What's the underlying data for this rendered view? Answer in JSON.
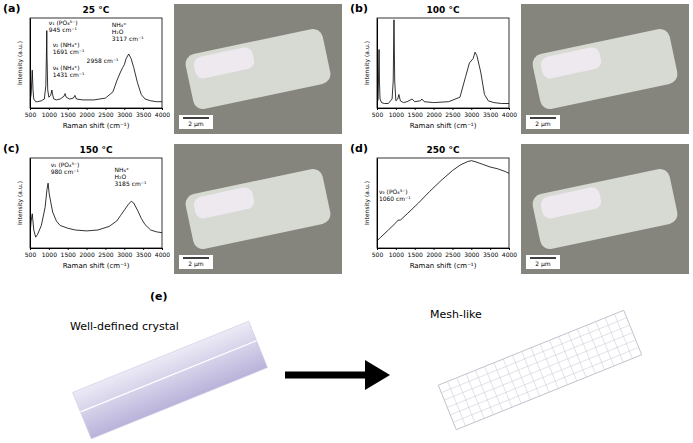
{
  "chart_data": [
    {
      "type": "line",
      "panel": "(a)",
      "title": "25 °C",
      "x_label": "Raman shift (cm⁻¹)",
      "y_label": "Intensity (a.u.)",
      "xlim": [
        500,
        4000
      ],
      "xticks": [
        500,
        1000,
        1500,
        2000,
        2500,
        3000,
        3500,
        4000
      ],
      "ylim": [
        0,
        1
      ],
      "tick_labels": "x",
      "series": [
        {
          "color": "#000000",
          "x": [
            500,
            530,
            560,
            580,
            600,
            650,
            700,
            800,
            880,
            920,
            940,
            945,
            950,
            970,
            1000,
            1050,
            1080,
            1100,
            1130,
            1200,
            1300,
            1400,
            1431,
            1460,
            1550,
            1650,
            1691,
            1730,
            1900,
            2200,
            2500,
            2700,
            2800,
            2900,
            2958,
            3000,
            3050,
            3117,
            3180,
            3250,
            3350,
            3450,
            3550,
            3700,
            3850,
            4000
          ],
          "values": [
            0.08,
            0.15,
            0.42,
            0.2,
            0.1,
            0.07,
            0.07,
            0.08,
            0.1,
            0.25,
            0.7,
            0.86,
            0.6,
            0.2,
            0.12,
            0.14,
            0.2,
            0.15,
            0.1,
            0.09,
            0.1,
            0.13,
            0.16,
            0.12,
            0.1,
            0.11,
            0.14,
            0.1,
            0.09,
            0.09,
            0.11,
            0.18,
            0.3,
            0.4,
            0.45,
            0.48,
            0.55,
            0.6,
            0.55,
            0.45,
            0.28,
            0.15,
            0.1,
            0.08,
            0.07,
            0.07
          ]
        }
      ],
      "annotations": [
        {
          "text": [
            "ν₁ (PO₄³⁻)",
            "945 cm⁻¹"
          ],
          "x": 1000,
          "y": 0.92
        },
        {
          "text": [
            "ν₂ (NH₄⁺)",
            "1691 cm⁻¹"
          ],
          "x": 1100,
          "y": 0.68
        },
        {
          "text": [
            "ν₄ (NH₄⁺)",
            "1431 cm⁻¹"
          ],
          "x": 1100,
          "y": 0.42
        },
        {
          "text": [
            "2958 cm⁻¹"
          ],
          "x": 2000,
          "y": 0.5
        },
        {
          "text": [
            "NH₄⁺",
            "H₂O",
            "3117 cm⁻¹"
          ],
          "x": 2670,
          "y": 0.9
        }
      ]
    },
    {
      "type": "line",
      "panel": "(b)",
      "title": "100 °C",
      "x_label": "Raman shift (cm⁻¹)",
      "y_label": "Intensity (a.u.)",
      "xlim": [
        500,
        4000
      ],
      "xticks": [
        500,
        1000,
        1500,
        2000,
        2500,
        3000,
        3500,
        4000
      ],
      "ylim": [
        0,
        1
      ],
      "tick_labels": "x",
      "series": [
        {
          "color": "#000000",
          "x": [
            500,
            530,
            555,
            565,
            580,
            620,
            700,
            800,
            900,
            930,
            950,
            970,
            1000,
            1050,
            1080,
            1120,
            1200,
            1300,
            1431,
            1500,
            1650,
            1691,
            1750,
            2000,
            2400,
            2700,
            2850,
            2950,
            3050,
            3100,
            3150,
            3250,
            3350,
            3450,
            3600,
            3800,
            4000
          ],
          "values": [
            0.05,
            0.1,
            0.65,
            0.3,
            0.1,
            0.06,
            0.05,
            0.05,
            0.1,
            0.3,
            0.98,
            0.3,
            0.08,
            0.1,
            0.15,
            0.08,
            0.06,
            0.07,
            0.1,
            0.07,
            0.08,
            0.1,
            0.07,
            0.06,
            0.07,
            0.12,
            0.35,
            0.5,
            0.55,
            0.62,
            0.58,
            0.4,
            0.15,
            0.08,
            0.06,
            0.05,
            0.05
          ]
        }
      ],
      "annotations": []
    },
    {
      "type": "line",
      "panel": "(c)",
      "title": "150 °C",
      "x_label": "Raman shift (cm⁻¹)",
      "y_label": "Intensity (a.u.)",
      "xlim": [
        500,
        4000
      ],
      "xticks": [
        500,
        1000,
        1500,
        2000,
        2500,
        3000,
        3500,
        4000
      ],
      "ylim": [
        0,
        1
      ],
      "tick_labels": "x",
      "series": [
        {
          "color": "#000000",
          "x": [
            500,
            530,
            560,
            600,
            650,
            700,
            800,
            900,
            950,
            980,
            1010,
            1100,
            1200,
            1300,
            1500,
            1700,
            2000,
            2300,
            2600,
            2800,
            2900,
            3000,
            3100,
            3185,
            3250,
            3350,
            3450,
            3550,
            3700,
            3850,
            4000
          ],
          "values": [
            0.15,
            0.3,
            0.38,
            0.2,
            0.12,
            0.15,
            0.25,
            0.45,
            0.65,
            0.72,
            0.6,
            0.4,
            0.3,
            0.25,
            0.22,
            0.2,
            0.19,
            0.2,
            0.24,
            0.3,
            0.36,
            0.42,
            0.48,
            0.52,
            0.5,
            0.42,
            0.33,
            0.26,
            0.2,
            0.18,
            0.17
          ]
        }
      ],
      "annotations": [
        {
          "text": [
            "ν₁ (PO₄³⁻)",
            "980 cm⁻¹"
          ],
          "x": 1050,
          "y": 0.9
        },
        {
          "text": [
            "NH₄⁺",
            "H₂O",
            "3185 cm⁻¹"
          ],
          "x": 2740,
          "y": 0.85
        }
      ]
    },
    {
      "type": "line",
      "panel": "(d)",
      "title": "250 °C",
      "x_label": "Raman shift (cm⁻¹)",
      "y_label": "Intensity (a.u.)",
      "xlim": [
        500,
        4000
      ],
      "xticks": [
        500,
        1000,
        1500,
        2000,
        2500,
        3000,
        3500,
        4000
      ],
      "ylim": [
        0,
        1
      ],
      "tick_labels": "x",
      "series": [
        {
          "color": "#000000",
          "x": [
            500,
            600,
            800,
            1000,
            1060,
            1120,
            1300,
            1600,
            1900,
            2200,
            2500,
            2700,
            2900,
            3000,
            3100,
            3300,
            3500,
            3700,
            3900,
            4000
          ],
          "values": [
            0.08,
            0.12,
            0.2,
            0.28,
            0.31,
            0.31,
            0.38,
            0.5,
            0.63,
            0.75,
            0.86,
            0.92,
            0.96,
            0.97,
            0.96,
            0.93,
            0.9,
            0.88,
            0.85,
            0.83
          ]
        }
      ],
      "annotations": [
        {
          "text": [
            "ν₃ (PO₄³⁻)",
            "1060 cm⁻¹"
          ],
          "x": 550,
          "y": 0.6
        }
      ]
    }
  ],
  "images": [
    {
      "scale_bar": "2 μm"
    },
    {
      "scale_bar": "2 μm"
    },
    {
      "scale_bar": "2 μm"
    },
    {
      "scale_bar": "2 μm"
    }
  ],
  "schematic": {
    "panel": "(e)",
    "before": "Well-defined crystal",
    "after": "Mesh-like"
  }
}
